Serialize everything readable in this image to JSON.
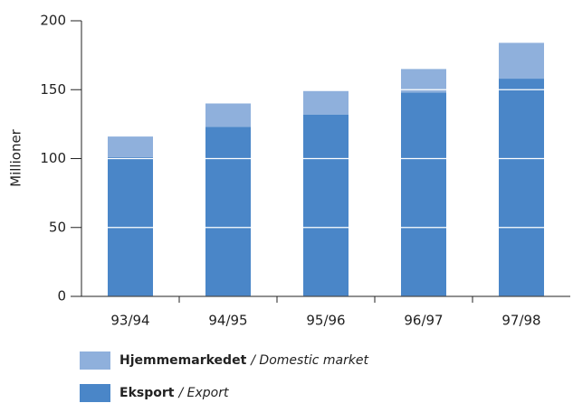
{
  "chart_data": {
    "type": "stacked_bar",
    "ylabel": "Millioner",
    "categories": [
      "93/94",
      "94/95",
      "95/96",
      "96/97",
      "97/98"
    ],
    "series": [
      {
        "name": "Eksport",
        "translation": "/ Export",
        "color": "#4a86c8",
        "values": [
          101,
          123,
          132,
          148,
          158
        ]
      },
      {
        "name": "Hjemmemarkedet",
        "translation": "/ Domestic market",
        "color": "#8fb0dc",
        "values": [
          15,
          17,
          17,
          17,
          26
        ]
      }
    ],
    "ylim": [
      0,
      200
    ],
    "yticks": [
      0,
      50,
      100,
      150,
      200
    ],
    "grid": true
  }
}
